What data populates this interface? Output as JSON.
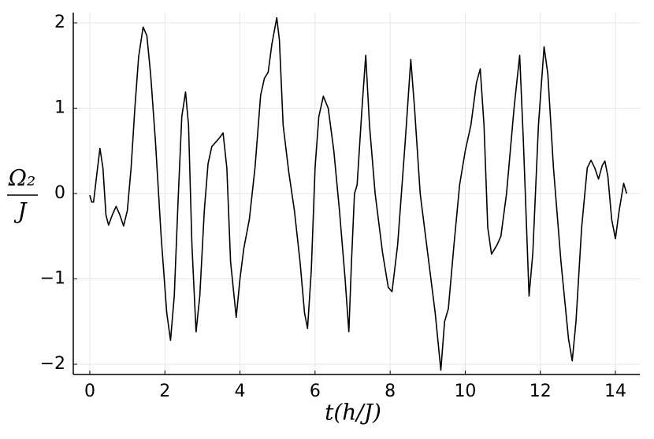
{
  "chart_data": {
    "type": "line",
    "xlabel": "t(h/J)",
    "ylabel_numerator": "Ω₂",
    "ylabel_denominator": "J",
    "x": [
      0,
      0.05,
      0.1,
      0.18,
      0.27,
      0.35,
      0.43,
      0.5,
      0.6,
      0.7,
      0.8,
      0.9,
      1.0,
      1.1,
      1.2,
      1.3,
      1.42,
      1.52,
      1.62,
      1.75,
      1.9,
      2.05,
      2.15,
      2.25,
      2.35,
      2.45,
      2.55,
      2.63,
      2.72,
      2.83,
      2.93,
      3.05,
      3.15,
      3.25,
      3.35,
      3.45,
      3.55,
      3.65,
      3.75,
      3.9,
      4.0,
      4.1,
      4.25,
      4.4,
      4.55,
      4.65,
      4.75,
      4.85,
      4.98,
      5.05,
      5.15,
      5.3,
      5.45,
      5.6,
      5.72,
      5.8,
      5.9,
      6.0,
      6.1,
      6.22,
      6.35,
      6.5,
      6.65,
      6.8,
      6.9,
      6.97,
      7.05,
      7.12,
      7.25,
      7.35,
      7.45,
      7.6,
      7.8,
      7.95,
      8.05,
      8.2,
      8.4,
      8.55,
      8.65,
      8.8,
      9.0,
      9.2,
      9.35,
      9.45,
      9.55,
      9.7,
      9.85,
      10.0,
      10.15,
      10.3,
      10.4,
      10.5,
      10.6,
      10.7,
      10.85,
      10.95,
      11.1,
      11.3,
      11.45,
      11.55,
      11.7,
      11.8,
      11.95,
      12.1,
      12.2,
      12.35,
      12.55,
      12.75,
      12.85,
      12.95,
      13.1,
      13.25,
      13.35,
      13.45,
      13.55,
      13.65,
      13.72,
      13.8,
      13.9,
      14.0,
      14.1,
      14.22,
      14.3
    ],
    "series": [
      {
        "color": "#000000",
        "values": [
          -0.02,
          -0.1,
          -0.1,
          0.2,
          0.53,
          0.3,
          -0.25,
          -0.37,
          -0.25,
          -0.15,
          -0.25,
          -0.38,
          -0.2,
          0.3,
          1.0,
          1.6,
          1.95,
          1.85,
          1.4,
          0.6,
          -0.5,
          -1.4,
          -1.72,
          -1.2,
          -0.1,
          0.9,
          1.19,
          0.8,
          -0.6,
          -1.62,
          -1.2,
          -0.2,
          0.35,
          0.55,
          0.6,
          0.65,
          0.71,
          0.3,
          -0.8,
          -1.45,
          -1.0,
          -0.65,
          -0.3,
          0.3,
          1.15,
          1.35,
          1.42,
          1.75,
          2.06,
          1.8,
          0.8,
          0.25,
          -0.2,
          -0.8,
          -1.4,
          -1.58,
          -0.9,
          0.3,
          0.9,
          1.14,
          1.0,
          0.5,
          -0.2,
          -1.0,
          -1.62,
          -0.8,
          0.0,
          0.1,
          1.0,
          1.62,
          0.8,
          0.0,
          -0.7,
          -1.1,
          -1.15,
          -0.6,
          0.6,
          1.57,
          1.0,
          0.0,
          -0.7,
          -1.4,
          -2.07,
          -1.5,
          -1.35,
          -0.6,
          0.1,
          0.5,
          0.8,
          1.3,
          1.46,
          0.8,
          -0.4,
          -0.71,
          -0.6,
          -0.5,
          0.0,
          1.0,
          1.62,
          0.6,
          -1.2,
          -0.7,
          0.8,
          1.72,
          1.4,
          0.3,
          -0.8,
          -1.7,
          -1.96,
          -1.5,
          -0.4,
          0.3,
          0.39,
          0.3,
          0.17,
          0.33,
          0.38,
          0.2,
          -0.3,
          -0.53,
          -0.2,
          0.12,
          0.0
        ]
      }
    ],
    "xlim": [
      -0.44,
      14.65
    ],
    "xticks": [
      0,
      2,
      4,
      6,
      8,
      10,
      12,
      14
    ],
    "ylim": [
      -2.12,
      2.12
    ],
    "yticks": [
      {
        "value": -2,
        "label": "−2"
      },
      {
        "value": -1,
        "label": "−1"
      },
      0,
      1,
      2
    ],
    "grid": true
  }
}
